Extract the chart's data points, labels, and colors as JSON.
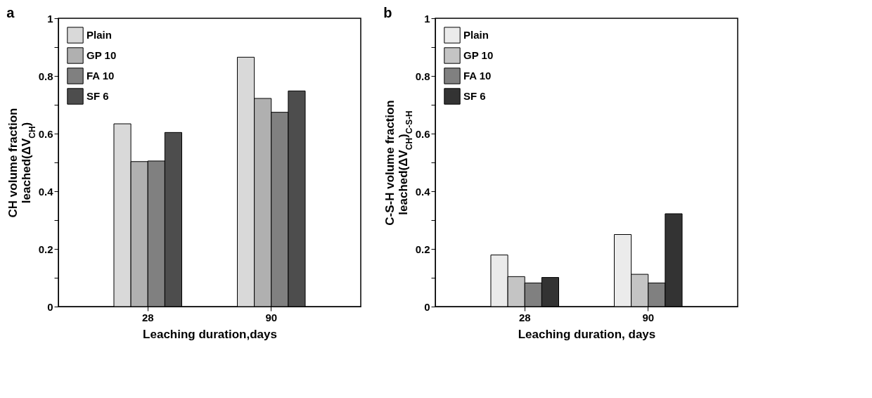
{
  "chart_data": [
    {
      "type": "bar",
      "title": "a",
      "xlabel": "Leaching duration,days",
      "ylabel": "CH volume fraction\nleached(ΔV$_{CH}$)",
      "categories": [
        "28",
        "90"
      ],
      "series": [
        {
          "name": "Plain",
          "color": "#d9d9d9",
          "values": [
            0.634,
            0.865
          ]
        },
        {
          "name": "GP 10",
          "color": "#b0b0b0",
          "values": [
            0.503,
            0.722
          ]
        },
        {
          "name": "FA 10",
          "color": "#808080",
          "values": [
            0.505,
            0.674
          ]
        },
        {
          "name": "SF 6",
          "color": "#4d4d4d",
          "values": [
            0.604,
            0.748
          ]
        }
      ],
      "ylim": [
        0,
        1
      ],
      "yticks": [
        0,
        {
          "value": 0.1,
          "label": null
        },
        0.2,
        {
          "value": 0.3,
          "label": null
        },
        0.4,
        {
          "value": 0.5,
          "label": null
        },
        0.6,
        {
          "value": 0.7,
          "label": null
        },
        0.8,
        {
          "value": 0.9,
          "label": null
        },
        1
      ],
      "grid": false,
      "legend": "top left"
    },
    {
      "type": "bar",
      "title": "b",
      "xlabel": "Leaching duration, days",
      "ylabel": "C-S-H volume fraction\nleached(ΔV$_{CH}$)$_{C-S-H}$",
      "categories": [
        "28",
        "90"
      ],
      "series": [
        {
          "name": "Plain",
          "color": "#ebebeb",
          "values": [
            0.179,
            0.25
          ]
        },
        {
          "name": "GP 10",
          "color": "#c4c4c4",
          "values": [
            0.104,
            0.112
          ]
        },
        {
          "name": "FA 10",
          "color": "#808080",
          "values": [
            0.082,
            0.082
          ]
        },
        {
          "name": "SF 6",
          "color": "#333333",
          "values": [
            0.101,
            0.322
          ]
        }
      ],
      "ylim": [
        0,
        1
      ],
      "yticks": [
        0,
        {
          "value": 0.1,
          "label": null
        },
        0.2,
        {
          "value": 0.3,
          "label": null
        },
        0.4,
        {
          "value": 0.5,
          "label": null
        },
        0.6,
        {
          "value": 0.7,
          "label": null
        },
        0.8,
        {
          "value": 0.9,
          "label": null
        },
        1
      ],
      "grid": false,
      "legend": "top left"
    }
  ]
}
